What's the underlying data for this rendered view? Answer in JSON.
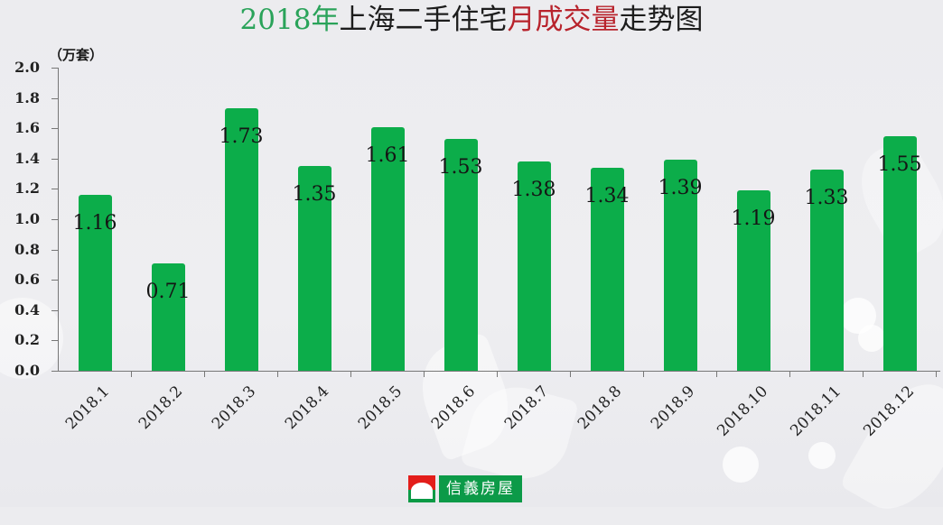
{
  "title": {
    "part1": "2018年",
    "part2": "上海二手住宅",
    "part3": "月成交量",
    "part4": "走势图"
  },
  "colors": {
    "bar": "#0cad4a",
    "title_green": "#2aa35a",
    "title_red": "#b8232c",
    "logo_green": "#0c9a48",
    "logo_red": "#e31d1a"
  },
  "y_axis": {
    "unit": "（万套）",
    "ticks": [
      "0.0",
      "0.2",
      "0.4",
      "0.6",
      "0.8",
      "1.0",
      "1.2",
      "1.4",
      "1.6",
      "1.8",
      "2.0"
    ]
  },
  "logo": {
    "text": "信義房屋"
  },
  "chart_data": {
    "type": "bar",
    "title": "2018年上海二手住宅月成交量走势图",
    "xlabel": "",
    "ylabel": "（万套）",
    "ylim": [
      0,
      2.0
    ],
    "yticks": [
      0.0,
      0.2,
      0.4,
      0.6,
      0.8,
      1.0,
      1.2,
      1.4,
      1.6,
      1.8,
      2.0
    ],
    "grid": false,
    "legend": null,
    "categories": [
      "2018.1",
      "2018.2",
      "2018.3",
      "2018.4",
      "2018.5",
      "2018.6",
      "2018.7",
      "2018.8",
      "2018.9",
      "2018.10",
      "2018.11",
      "2018.12"
    ],
    "values": [
      1.16,
      0.71,
      1.73,
      1.35,
      1.61,
      1.53,
      1.38,
      1.34,
      1.39,
      1.19,
      1.33,
      1.55
    ],
    "value_labels": [
      "1.16",
      "0.71",
      "1.73",
      "1.35",
      "1.61",
      "1.53",
      "1.38",
      "1.34",
      "1.39",
      "1.19",
      "1.33",
      "1.55"
    ]
  }
}
